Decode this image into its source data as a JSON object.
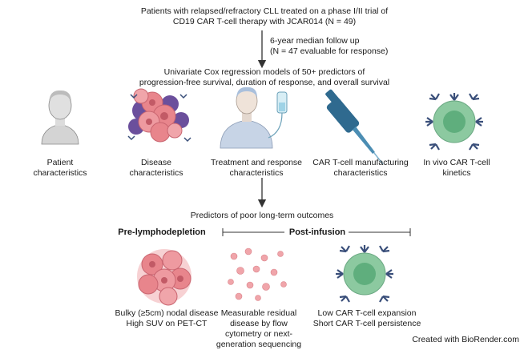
{
  "header": {
    "line1": "Patients with relapsed/refractory CLL treated on a phase I/II trial of",
    "line2": "CD19 CAR T-cell therapy with JCAR014 (N = 49)"
  },
  "followup": {
    "line1": "6-year median follow up",
    "line2": "(N = 47 evaluable for response)"
  },
  "models": {
    "line1": "Univariate Cox regression models of 50+ predictors of",
    "line2": "progression-free survival, duration of response, and overall survival"
  },
  "predictor_categories": [
    {
      "line1": "Patient",
      "line2": "characteristics",
      "icon": "patient-icon"
    },
    {
      "line1": "Disease",
      "line2": "characteristics",
      "icon": "tumor-cells-icon"
    },
    {
      "line1": "Treatment and response",
      "line2": "characteristics",
      "icon": "patient-infusion-icon"
    },
    {
      "line1": "CAR T-cell manufacturing",
      "line2": "characteristics",
      "icon": "pipette-icon"
    },
    {
      "line1": "In vivo CAR T-cell",
      "line2": "kinetics",
      "icon": "car-t-cell-icon"
    }
  ],
  "poor_outcomes_title": "Predictors of poor long-term outcomes",
  "phases": {
    "pre": "Pre-lymphodepletion",
    "post": "Post-infusion"
  },
  "outcomes": [
    {
      "line1": "Bulky (≥5cm) nodal disease",
      "line2": "High SUV on PET-CT",
      "icon": "bulky-tumor-icon"
    },
    {
      "line1": "Measurable residual",
      "line2": "disease by flow",
      "line3": "cytometry or next-",
      "line4": "generation sequencing",
      "icon": "residual-cells-icon"
    },
    {
      "line1": "Low CAR T-cell expansion",
      "line2": "Short CAR T-cell persistence",
      "icon": "car-t-cell-icon"
    }
  ],
  "credit": "Created with BioRender.com",
  "colors": {
    "text": "#1a1a1a",
    "arrow": "#333333",
    "tumor_pink": "#e8858c",
    "tumor_purple": "#6b4f9c",
    "cell_green": "#8cc9a0",
    "receptor_blue": "#3a4f7a",
    "pipette_blue": "#2f6a8f",
    "skin": "#d9d9d9"
  }
}
